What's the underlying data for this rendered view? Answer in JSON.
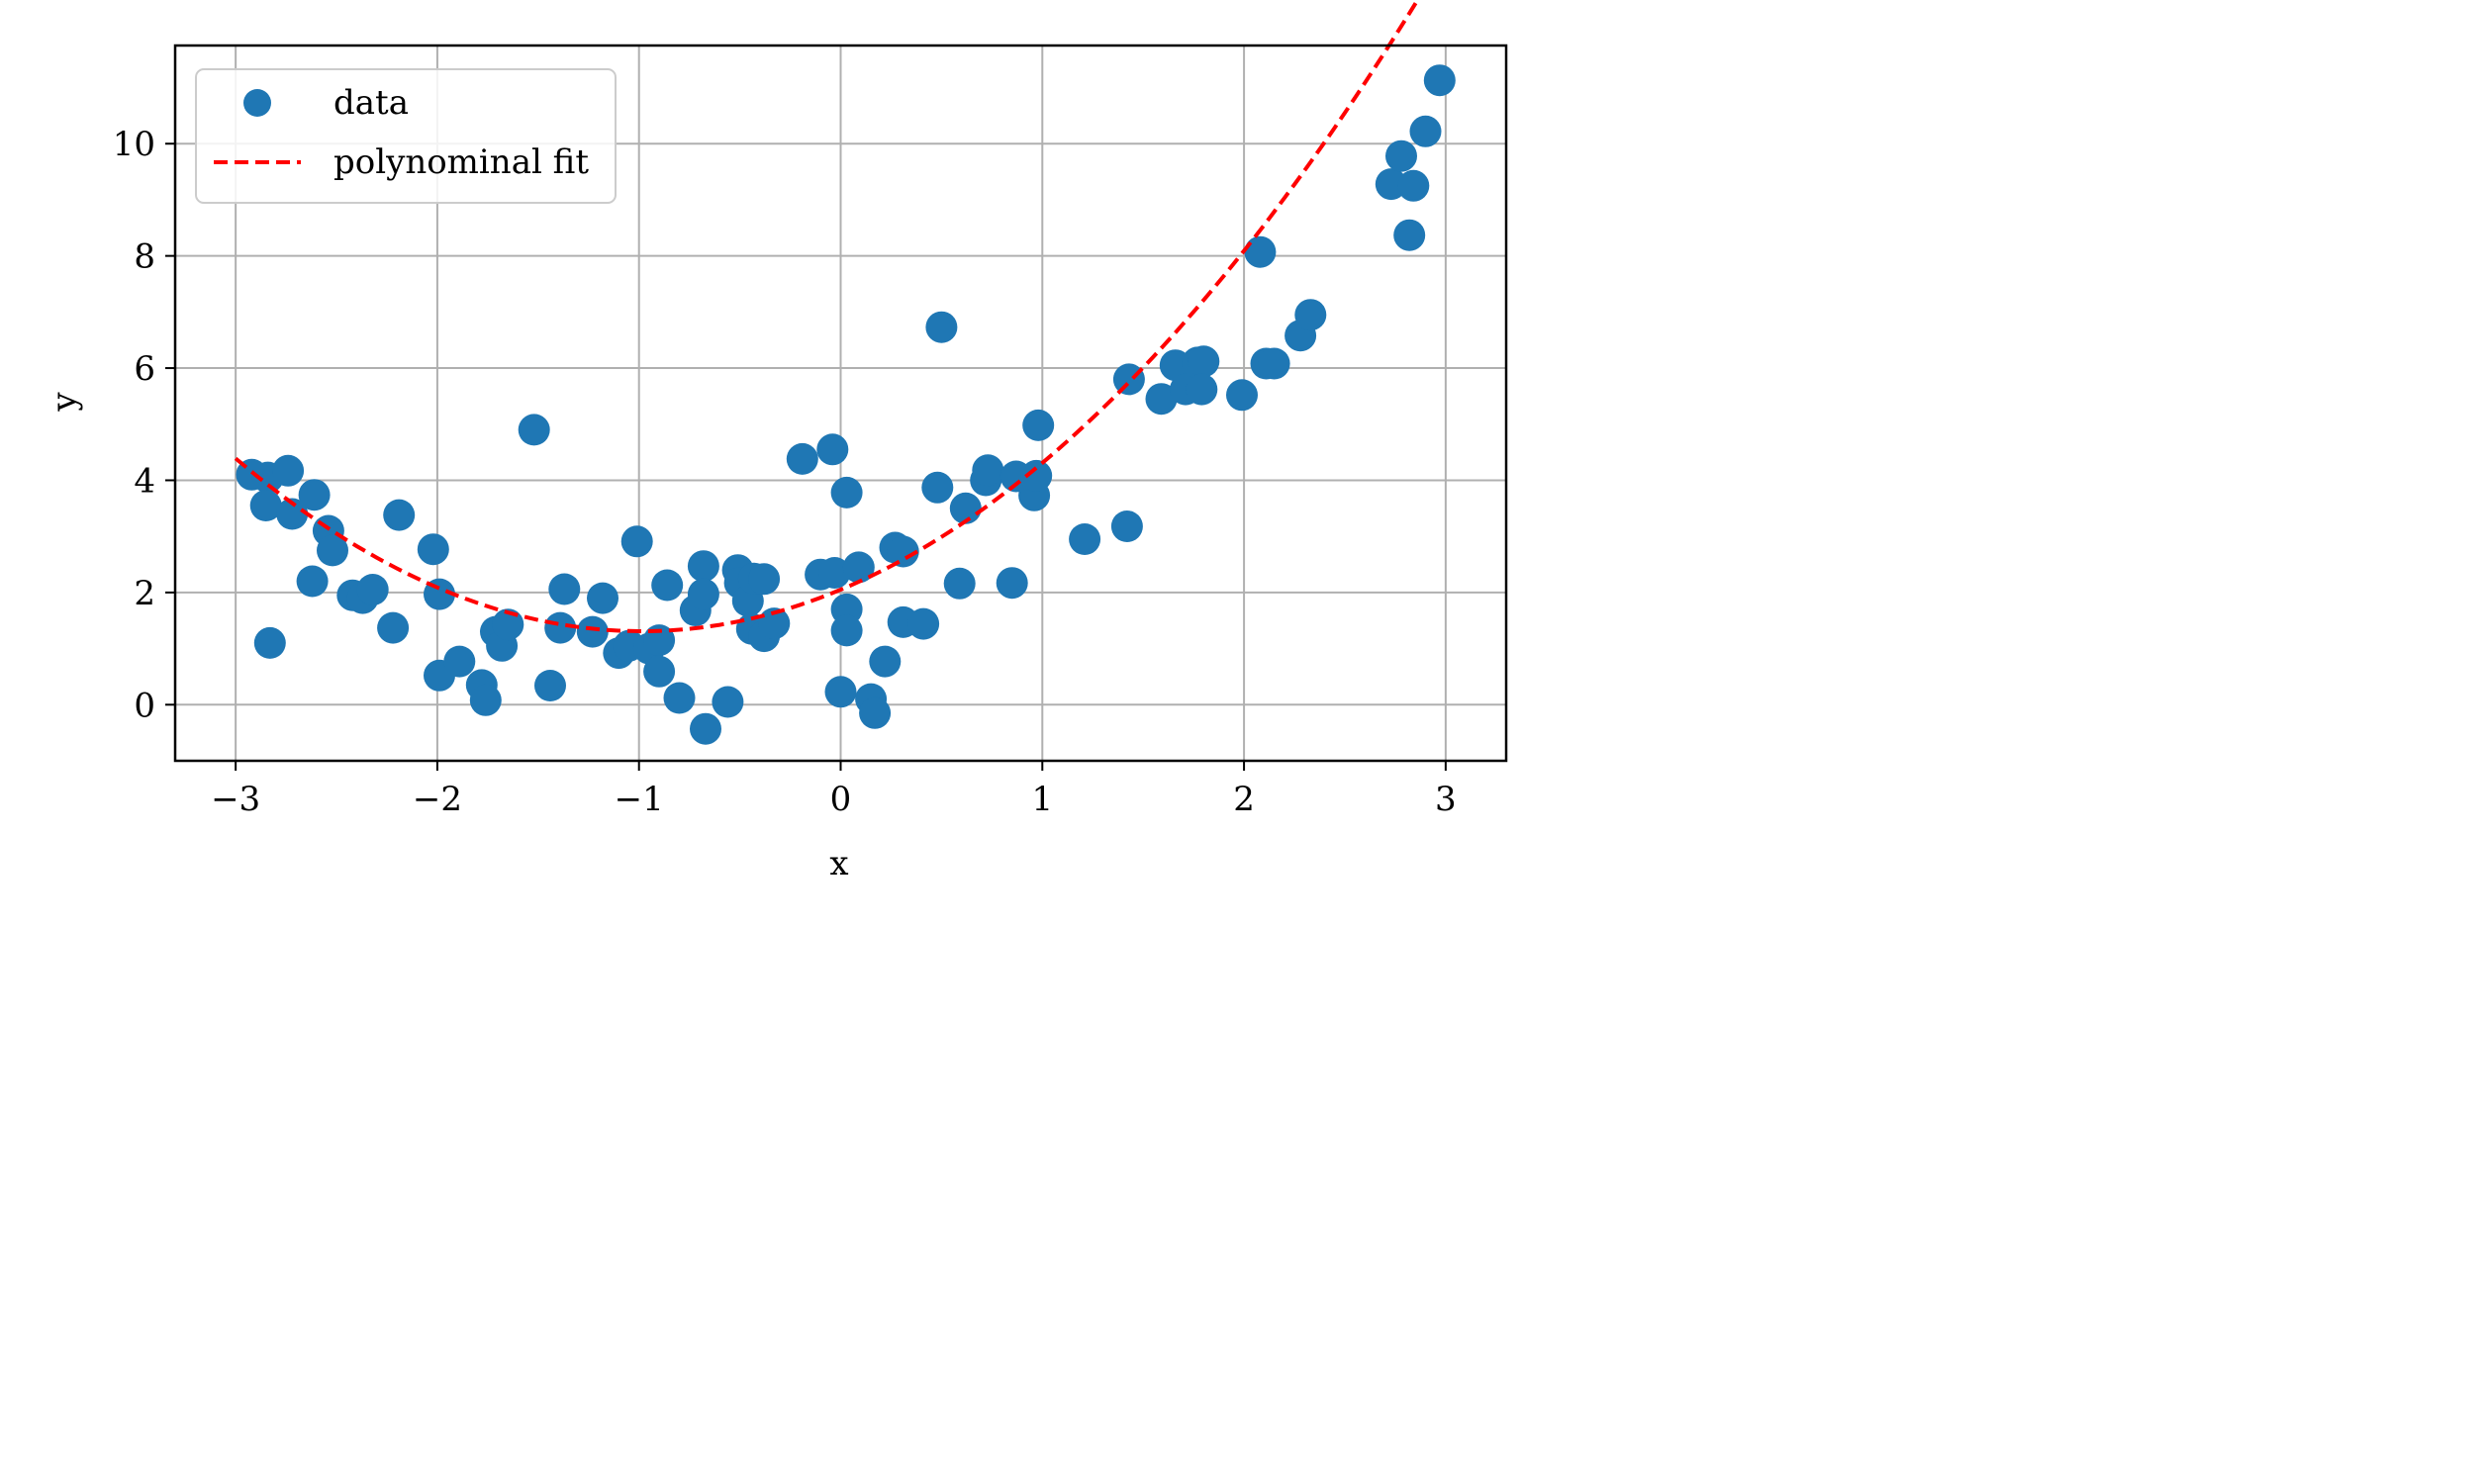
{
  "chart_data": {
    "type": "scatter",
    "xlabel": "x",
    "ylabel": "y",
    "xlim": [
      -3.3,
      3.3
    ],
    "ylim": [
      -1.0,
      11.75
    ],
    "xticks": [
      -3,
      -2,
      -1,
      0,
      1,
      2,
      3
    ],
    "xtick_labels": [
      "−3",
      "−2",
      "−1",
      "0",
      "1",
      "2",
      "3"
    ],
    "yticks": [
      0,
      2,
      4,
      6,
      8,
      10
    ],
    "ytick_labels": [
      "0",
      "2",
      "4",
      "6",
      "8",
      "10"
    ],
    "grid": true,
    "legend_position": "upper-left",
    "series": [
      {
        "name": "data",
        "kind": "scatter",
        "color": "#1f77b4",
        "points": [
          [
            -2.92,
            4.1
          ],
          [
            -2.84,
            4.05
          ],
          [
            -2.85,
            3.55
          ],
          [
            -2.74,
            4.17
          ],
          [
            -2.72,
            3.4
          ],
          [
            -2.83,
            1.1
          ],
          [
            -2.61,
            3.74
          ],
          [
            -2.62,
            2.2
          ],
          [
            -2.54,
            3.1
          ],
          [
            -2.52,
            2.75
          ],
          [
            -2.42,
            1.95
          ],
          [
            -2.37,
            1.9
          ],
          [
            -2.32,
            2.05
          ],
          [
            -2.22,
            1.37
          ],
          [
            -2.19,
            3.38
          ],
          [
            -2.02,
            2.77
          ],
          [
            -1.99,
            1.97
          ],
          [
            -1.99,
            0.52
          ],
          [
            -1.89,
            0.77
          ],
          [
            -1.78,
            0.35
          ],
          [
            -1.76,
            0.08
          ],
          [
            -1.71,
            1.3
          ],
          [
            -1.68,
            1.05
          ],
          [
            -1.65,
            1.43
          ],
          [
            -1.52,
            4.9
          ],
          [
            -1.44,
            0.34
          ],
          [
            -1.39,
            1.37
          ],
          [
            -1.37,
            2.06
          ],
          [
            -1.23,
            1.3
          ],
          [
            -1.18,
            1.9
          ],
          [
            -1.1,
            0.92
          ],
          [
            -1.05,
            1.05
          ],
          [
            -1.01,
            2.91
          ],
          [
            -0.95,
            1.0
          ],
          [
            -0.9,
            1.15
          ],
          [
            -0.9,
            0.59
          ],
          [
            -0.86,
            2.13
          ],
          [
            -0.8,
            0.12
          ],
          [
            -0.72,
            1.68
          ],
          [
            -0.68,
            2.47
          ],
          [
            -0.68,
            1.97
          ],
          [
            -0.67,
            -0.43
          ],
          [
            -0.56,
            0.05
          ],
          [
            -0.51,
            2.4
          ],
          [
            -0.5,
            2.17
          ],
          [
            -0.46,
            1.85
          ],
          [
            -0.43,
            2.25
          ],
          [
            -0.44,
            1.35
          ],
          [
            -0.38,
            2.24
          ],
          [
            -0.38,
            1.22
          ],
          [
            -0.33,
            1.45
          ],
          [
            -0.19,
            4.38
          ],
          [
            -0.1,
            2.32
          ],
          [
            -0.04,
            4.55
          ],
          [
            -0.03,
            2.35
          ],
          [
            0.0,
            0.23
          ],
          [
            0.03,
            3.78
          ],
          [
            0.03,
            1.7
          ],
          [
            0.03,
            1.32
          ],
          [
            0.09,
            2.45
          ],
          [
            0.15,
            0.1
          ],
          [
            0.17,
            -0.15
          ],
          [
            0.22,
            0.77
          ],
          [
            0.27,
            2.8
          ],
          [
            0.31,
            2.73
          ],
          [
            0.31,
            1.47
          ],
          [
            0.41,
            1.44
          ],
          [
            0.48,
            3.87
          ],
          [
            0.5,
            6.73
          ],
          [
            0.59,
            2.16
          ],
          [
            0.62,
            3.5
          ],
          [
            0.72,
            4.0
          ],
          [
            0.73,
            4.18
          ],
          [
            0.85,
            2.17
          ],
          [
            0.87,
            4.07
          ],
          [
            0.96,
            3.73
          ],
          [
            0.97,
            4.08
          ],
          [
            0.98,
            4.98
          ],
          [
            1.21,
            2.95
          ],
          [
            1.42,
            3.18
          ],
          [
            1.43,
            5.8
          ],
          [
            1.59,
            5.45
          ],
          [
            1.66,
            6.05
          ],
          [
            1.71,
            5.62
          ],
          [
            1.77,
            6.1
          ],
          [
            1.8,
            6.12
          ],
          [
            1.79,
            5.62
          ],
          [
            1.99,
            5.52
          ],
          [
            2.08,
            8.07
          ],
          [
            2.11,
            6.08
          ],
          [
            2.15,
            6.08
          ],
          [
            2.28,
            6.58
          ],
          [
            2.33,
            6.95
          ],
          [
            2.73,
            9.28
          ],
          [
            2.78,
            9.78
          ],
          [
            2.82,
            8.37
          ],
          [
            2.84,
            9.25
          ],
          [
            2.9,
            10.22
          ],
          [
            2.97,
            11.13
          ]
        ]
      },
      {
        "name": "polynominal fit",
        "kind": "line",
        "style": "dashed",
        "color": "#ff0000",
        "polynomial": {
          "a": 0.76,
          "b": 1.5,
          "c": 2.05
        },
        "x_range": [
          -3.0,
          3.0
        ]
      }
    ]
  }
}
